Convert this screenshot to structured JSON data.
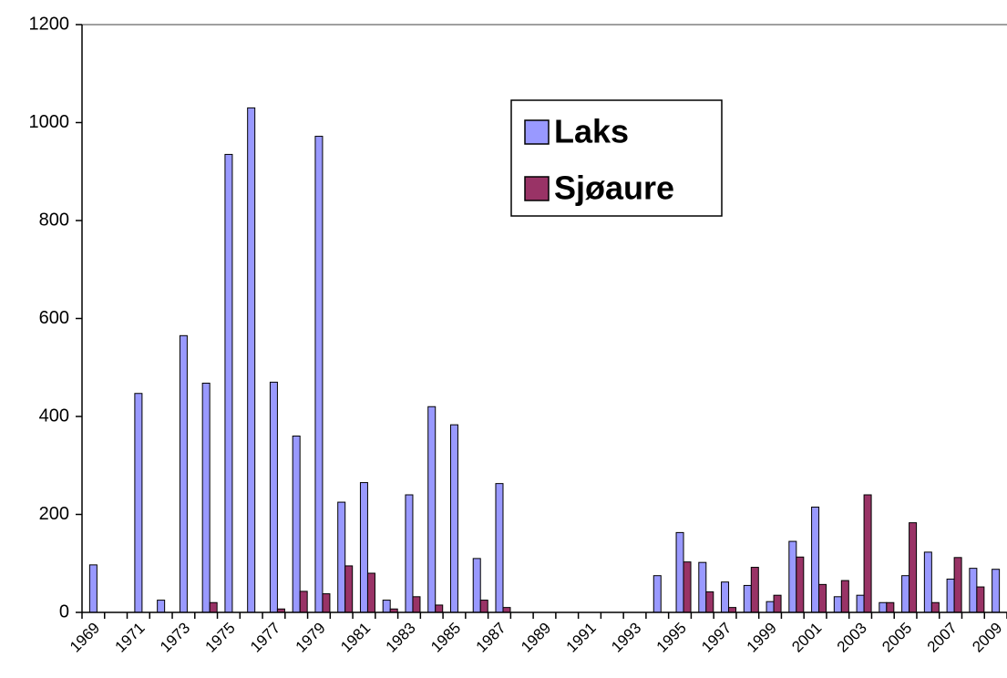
{
  "chart_data": {
    "type": "bar",
    "categories": [
      "1969",
      null,
      "1971",
      null,
      "1973",
      null,
      "1975",
      null,
      "1977",
      null,
      "1979",
      null,
      "1981",
      null,
      "1983",
      null,
      "1985",
      null,
      "1987",
      null,
      "1989",
      null,
      "1991",
      null,
      "1993",
      null,
      "1995",
      null,
      "1997",
      null,
      "1999",
      null,
      "2001",
      null,
      "2003",
      null,
      "2005",
      null,
      "2007",
      null,
      "2009"
    ],
    "series": [
      {
        "name": "Laks",
        "color": "#9999ff",
        "values": [
          97,
          0,
          447,
          25,
          565,
          468,
          935,
          1030,
          470,
          360,
          972,
          225,
          265,
          25,
          240,
          420,
          383,
          110,
          263,
          0,
          0,
          0,
          0,
          0,
          0,
          75,
          163,
          102,
          62,
          55,
          22,
          145,
          215,
          32,
          35,
          20,
          75,
          123,
          68,
          90,
          88
        ]
      },
      {
        "name": "Sjøaure",
        "color": "#993366",
        "values": [
          0,
          0,
          0,
          0,
          0,
          20,
          0,
          0,
          7,
          43,
          38,
          95,
          80,
          7,
          32,
          15,
          0,
          25,
          10,
          0,
          0,
          0,
          0,
          0,
          0,
          0,
          103,
          42,
          10,
          92,
          35,
          113,
          57,
          65,
          240,
          20,
          183,
          20,
          112,
          52,
          0
        ]
      }
    ],
    "ylim": [
      0,
      1200
    ],
    "yticks": [
      0,
      200,
      400,
      600,
      800,
      1000,
      1200
    ],
    "legend": "upper-right"
  }
}
